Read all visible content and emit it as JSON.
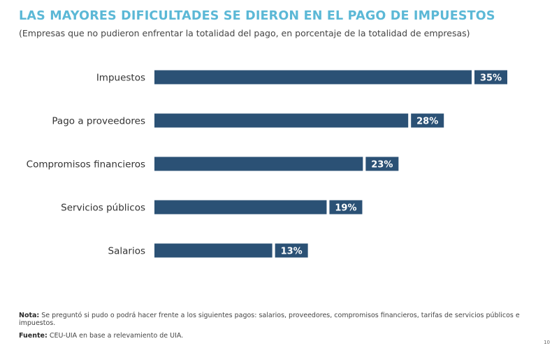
{
  "header": {
    "title": "LAS MAYORES DIFICULTADES SE DIERON EN EL PAGO DE IMPUESTOS",
    "subtitle": "(Empresas que no pudieron enfrentar la totalidad del pago, en porcentaje de la totalidad de empresas)"
  },
  "chart_data": {
    "type": "bar",
    "orientation": "horizontal",
    "categories": [
      "Impuestos",
      "Pago a proveedores",
      "Compromisos financieros",
      "Servicios públicos",
      "Salarios"
    ],
    "values": [
      35,
      28,
      23,
      19,
      13
    ],
    "value_labels": [
      "35%",
      "28%",
      "23%",
      "19%",
      "13%"
    ],
    "unit": "%",
    "xlim": [
      0,
      35
    ],
    "grid": false,
    "legend": "none",
    "bar_color": "#2b5175",
    "label_box_color": "#2b5175"
  },
  "footer": {
    "note_label": "Nota:",
    "note_text": "Se preguntó si pudo o podrá hacer frente a los siguientes pagos: salarios, proveedores, compromisos financieros, tarifas de servicios públicos e impuestos.",
    "source_label": "Fuente:",
    "source_text": "CEU-UIA en base a relevamiento de UIA.",
    "page_number": "10"
  }
}
